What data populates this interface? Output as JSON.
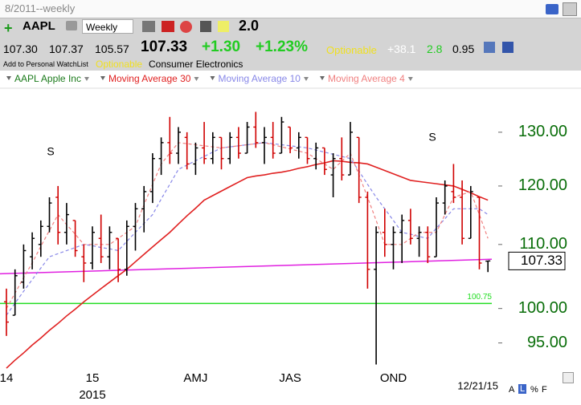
{
  "header": {
    "period": "8/2011--weekly",
    "symbol": "AAPL",
    "interval": "Weekly",
    "zoom": "2.0",
    "open": "107.30",
    "high": "107.37",
    "low": "105.57",
    "last": "107.33",
    "change": "+1.30",
    "change_pct": "+1.23%",
    "optionable": "Optionable",
    "stat1": "+38.1",
    "stat2": "2.8",
    "stat3": "0.95",
    "watchlist": "Add to Personal WatchList",
    "optionable2": "Optionable",
    "industry": "Consumer Electronics"
  },
  "footer": {
    "a": "A",
    "l": "L",
    "pct": "%",
    "f": "F"
  },
  "chart_data": {
    "type": "ohlc",
    "log_scale": true,
    "categories": [
      "14",
      null,
      null,
      null,
      null,
      null,
      null,
      null,
      null,
      null,
      "15",
      null,
      null,
      null,
      null,
      null,
      null,
      null,
      null,
      null,
      null,
      null,
      "AMJ",
      null,
      null,
      null,
      null,
      null,
      null,
      null,
      null,
      null,
      null,
      "JAS",
      null,
      null,
      null,
      null,
      null,
      null,
      null,
      null,
      null,
      null,
      null,
      "OND",
      null,
      null,
      null,
      null,
      null,
      null,
      null,
      null,
      null,
      null,
      null
    ],
    "year_label": "2015",
    "date_label": "12/21/15",
    "ylim": [
      91.4,
      138.8
    ],
    "yticks": [
      {
        "value": 95,
        "label": "95.00"
      },
      {
        "value": 100,
        "label": "100.00"
      },
      {
        "value": 110,
        "label": "110.00"
      },
      {
        "value": 120,
        "label": "120.00"
      },
      {
        "value": 130,
        "label": "130.00"
      }
    ],
    "annotations": [
      {
        "text": "S"
      },
      {
        "text": "S"
      }
    ],
    "support_line": 100.75,
    "support_color": "#22dd22",
    "trendline": [
      105.3,
      107.6
    ],
    "trendline_color": "#e020e0",
    "price": {
      "name": "AAPL Apple Inc",
      "up_color": "#000000",
      "down_color": "#d00000",
      "open": [
        101,
        99,
        104,
        108,
        110,
        113,
        118,
        112,
        114,
        108,
        107,
        111,
        108,
        111,
        106,
        113,
        116,
        119,
        125,
        128,
        126,
        129,
        124,
        127,
        125,
        129,
        125,
        129,
        126,
        131,
        128,
        129,
        126,
        131,
        127,
        129,
        125,
        127,
        122,
        125,
        122,
        129,
        118,
        106,
        112,
        110,
        112,
        114,
        111,
        112,
        108,
        117,
        119,
        118,
        111,
        118,
        107.3
      ],
      "high": [
        103,
        106,
        110,
        112,
        114,
        118,
        120,
        117,
        114,
        110,
        113,
        115,
        113,
        111,
        114,
        117,
        120,
        126,
        129,
        133,
        131,
        130,
        128,
        132,
        130,
        129,
        130,
        131,
        132,
        134,
        131,
        132,
        133,
        131,
        130,
        129,
        128,
        127,
        126,
        129,
        132,
        129,
        119,
        113,
        116,
        113,
        115,
        116,
        113,
        113,
        118,
        121,
        124,
        121,
        120,
        118,
        107.37
      ],
      "low": [
        96,
        99,
        103,
        106,
        108,
        112,
        110,
        110,
        108,
        104,
        106,
        107,
        106,
        104,
        105,
        109,
        112,
        117,
        122,
        124,
        124,
        123,
        122,
        124,
        124,
        123,
        124,
        125,
        126,
        127,
        124,
        125,
        126,
        126,
        125,
        124,
        123,
        122,
        118,
        121,
        122,
        117,
        103,
        92,
        108,
        106,
        107,
        110,
        108,
        107,
        108,
        115,
        117,
        110,
        111,
        106,
        105.57
      ],
      "close": [
        98,
        105,
        109,
        111,
        113,
        117,
        112,
        115,
        109,
        107,
        112,
        108,
        112,
        106,
        113,
        116,
        119,
        125,
        128,
        126,
        130,
        124,
        127,
        125,
        129,
        125,
        129,
        126,
        131,
        128,
        129,
        126,
        132,
        127,
        129,
        125,
        127,
        123,
        125,
        122,
        130,
        118,
        106,
        112,
        110,
        112,
        114,
        111,
        112,
        108,
        117,
        120,
        118,
        111,
        119,
        107,
        107.33
      ]
    },
    "series": [
      {
        "name": "Moving Average 30",
        "color": "#e02020",
        "dashed": false,
        "values": [
          91.5,
          92.6,
          93.6,
          94.7,
          95.7,
          96.8,
          97.8,
          98.9,
          99.9,
          101,
          102,
          103,
          104,
          105,
          106,
          107.2,
          108.4,
          109.6,
          110.8,
          112,
          113.4,
          114.8,
          116.1,
          117.5,
          118.3,
          119.1,
          119.9,
          120.7,
          121.5,
          121.8,
          122,
          122.3,
          122.5,
          122.8,
          123.2,
          123.5,
          123.9,
          124.2,
          124.6,
          124.5,
          124.3,
          124.2,
          124,
          123.4,
          122.8,
          122.2,
          121.6,
          121,
          120.8,
          120.6,
          120.4,
          120.2,
          120,
          119.4,
          118.8,
          118.1,
          117.5
        ]
      },
      {
        "name": "Moving Average 10",
        "color": "#8888e8",
        "dashed": true,
        "values": [
          99,
          100.8,
          102.6,
          104.4,
          106.2,
          108,
          108.5,
          109,
          109.5,
          110,
          109.8,
          109.5,
          109.3,
          109,
          110.5,
          112,
          113.5,
          115,
          117.7,
          120.3,
          123,
          123.8,
          124.6,
          125.4,
          126.2,
          127,
          127.2,
          127.4,
          127.6,
          127.8,
          128,
          127.8,
          127.6,
          127.4,
          127.2,
          127,
          126.6,
          126.2,
          125.8,
          125.4,
          125,
          122.7,
          120.3,
          118,
          116,
          114,
          112,
          111.7,
          111.3,
          111,
          112.7,
          114.3,
          116,
          116,
          116,
          116,
          115
        ]
      },
      {
        "name": "Moving Average 4",
        "color": "#f08080",
        "dashed": true,
        "values": [
          100,
          102.3,
          104.7,
          107,
          109.7,
          112.3,
          115,
          113.3,
          111.7,
          110,
          110,
          110,
          110,
          111,
          112,
          113,
          116.7,
          120.3,
          124,
          126,
          128,
          127.8,
          127.6,
          127.4,
          127.2,
          127,
          127.2,
          127.4,
          127.6,
          127.8,
          128,
          127.6,
          127.2,
          126.8,
          126.4,
          126,
          125,
          124,
          123,
          124.5,
          126,
          122,
          118,
          114,
          110,
          110,
          110,
          111,
          112,
          112,
          112,
          115,
          118,
          118.5,
          119,
          115,
          111
        ]
      }
    ]
  }
}
